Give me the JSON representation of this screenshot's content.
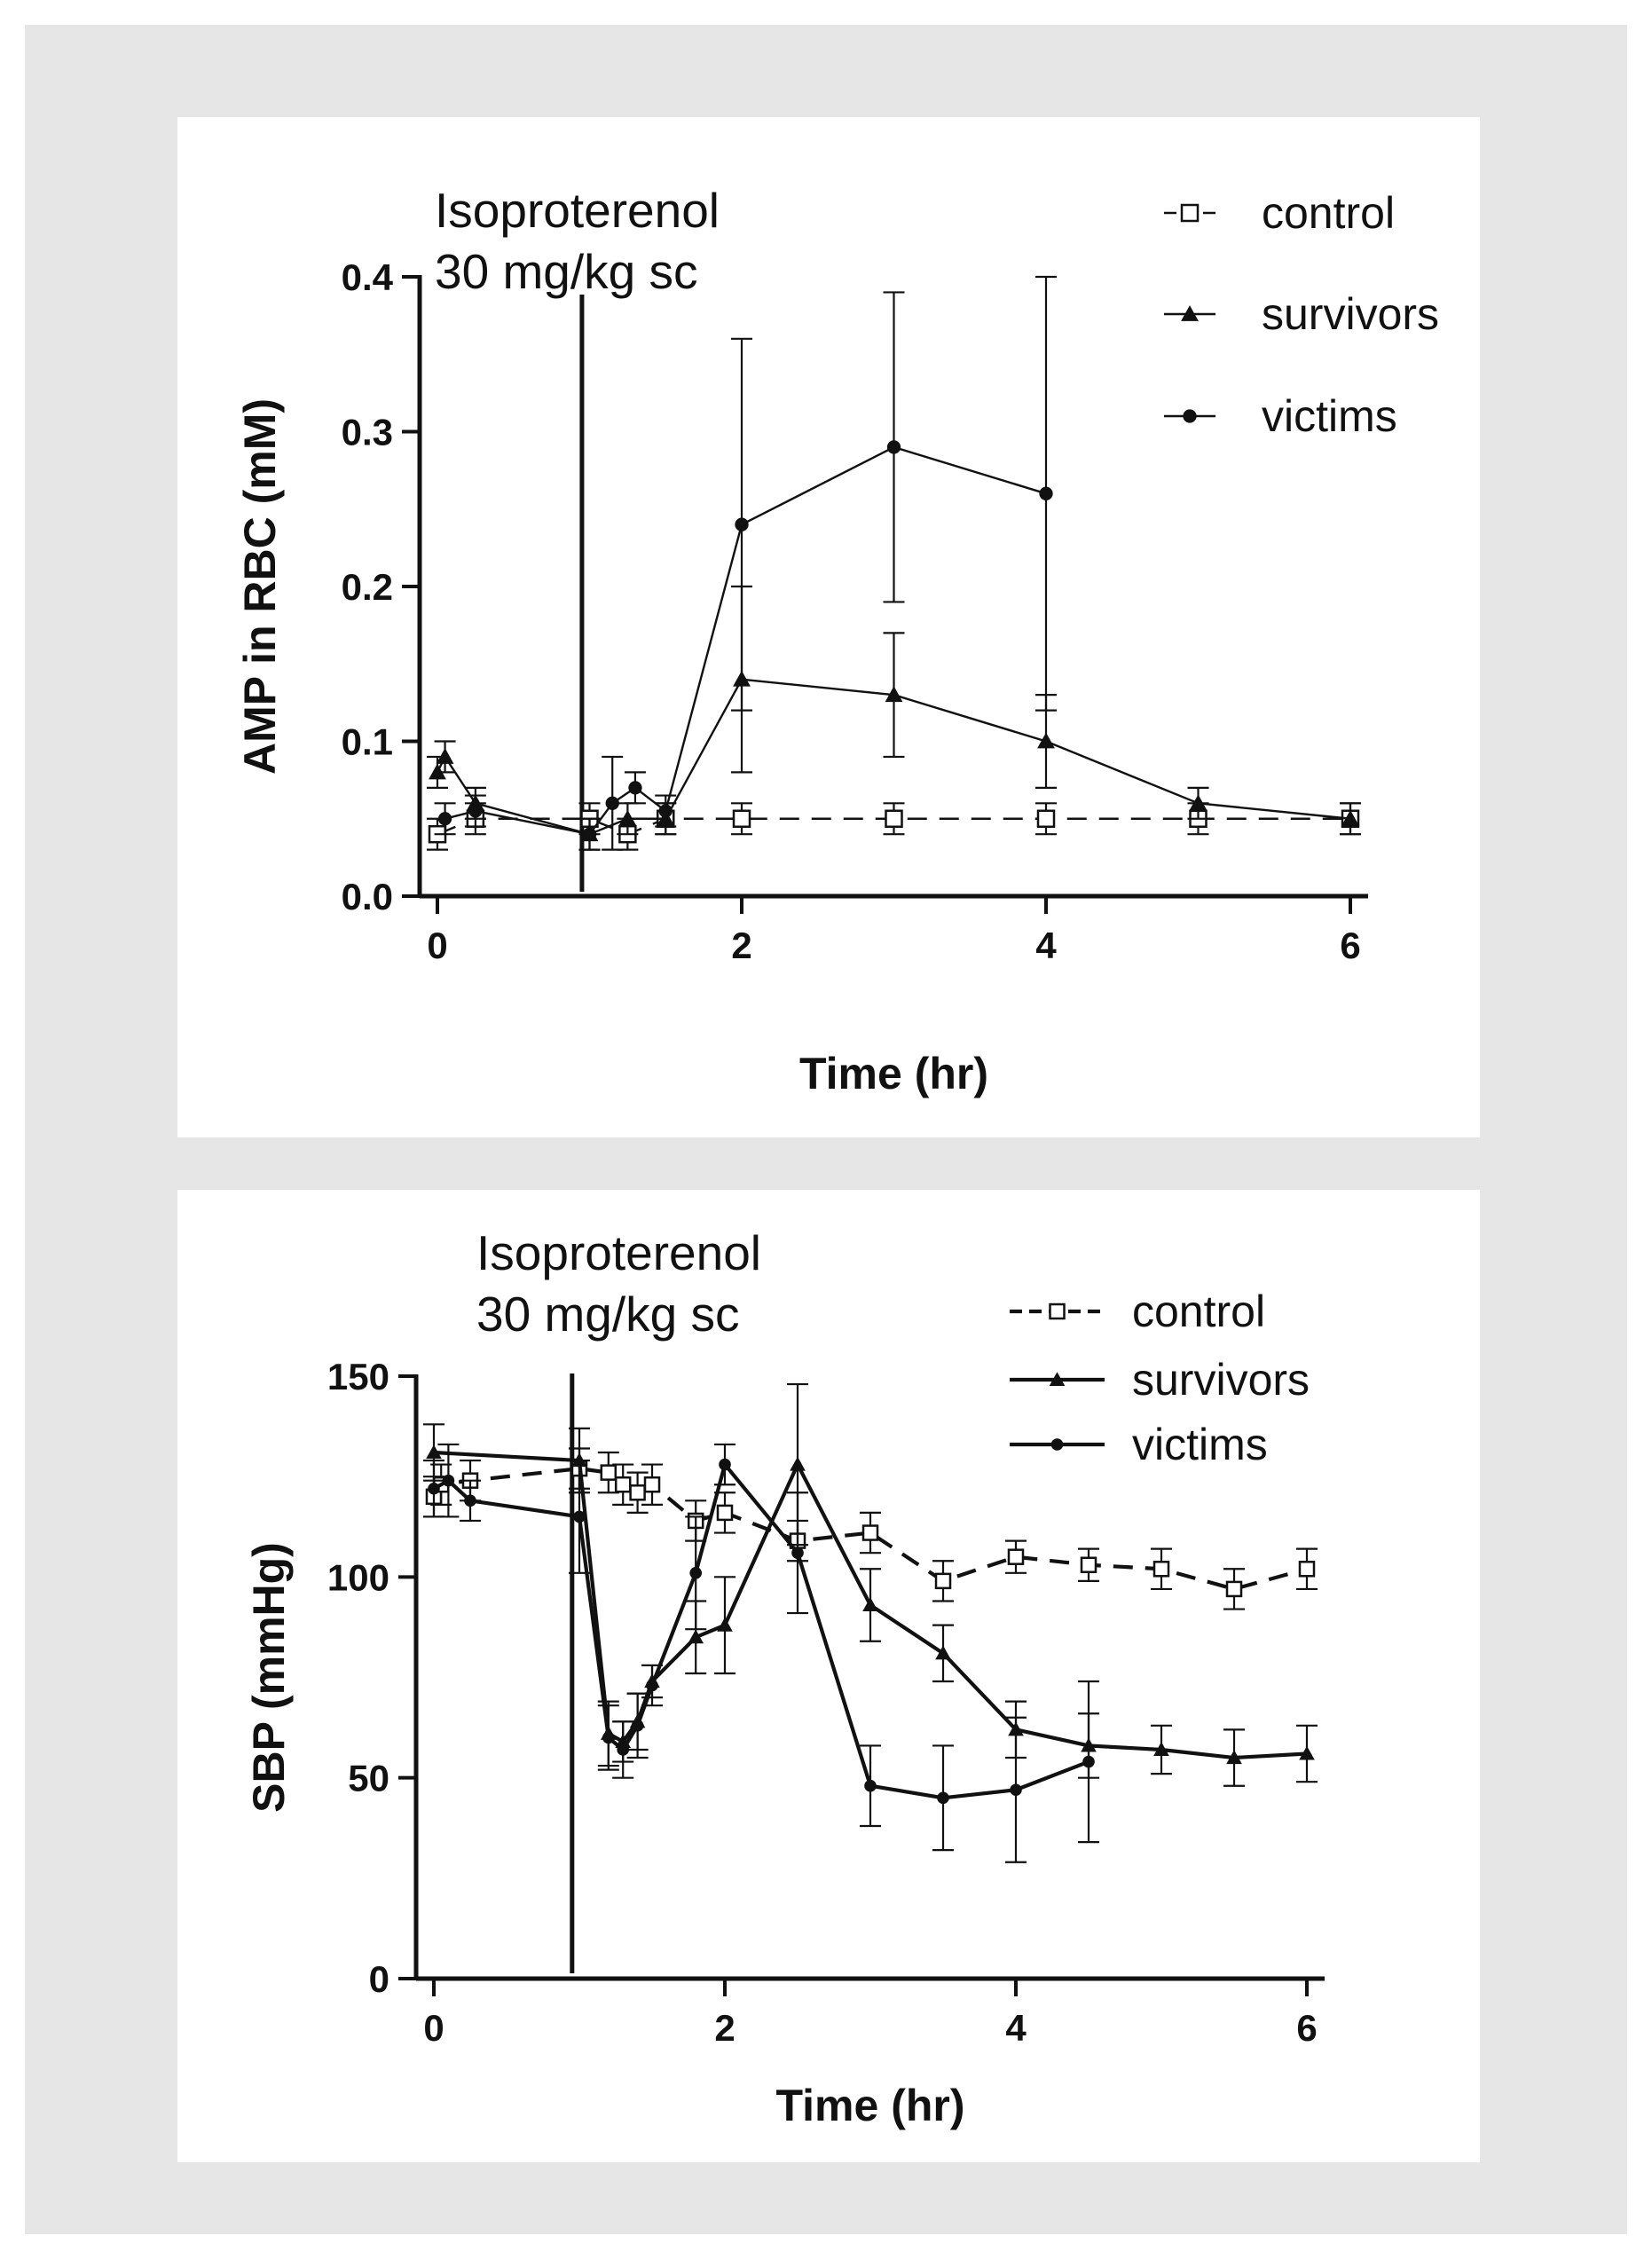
{
  "chart_data": [
    {
      "type": "line",
      "annotation": [
        "Isoproterenol",
        "30 mg/kg sc"
      ],
      "xlabel": "Time (hr)",
      "ylabel": "AMP in RBC (mM)",
      "xlim": [
        0,
        6
      ],
      "ylim": [
        0,
        0.4
      ],
      "xticks": [
        0,
        2,
        4,
        6
      ],
      "yticks": [
        0.0,
        0.1,
        0.2,
        0.3,
        0.4
      ],
      "ytick_labels": [
        "0.0",
        "0.1",
        "0.2",
        "0.3",
        "0.4"
      ],
      "vline_x": 0.95,
      "legend_position": "top-right",
      "grid": false,
      "series": [
        {
          "name": "control",
          "style": "dashed",
          "marker": "open-square",
          "x": [
            0,
            0.25,
            1,
            1.25,
            1.5,
            2,
            3,
            4,
            5,
            6
          ],
          "y": [
            0.04,
            0.05,
            0.05,
            0.04,
            0.05,
            0.05,
            0.05,
            0.05,
            0.05,
            0.05
          ],
          "err": [
            0.01,
            0.01,
            0.01,
            0.01,
            0.01,
            0.01,
            0.01,
            0.01,
            0.01,
            0.01
          ]
        },
        {
          "name": "survivors",
          "style": "solid",
          "marker": "filled-triangle",
          "x": [
            0,
            0.05,
            0.25,
            1,
            1.25,
            1.5,
            2,
            3,
            4,
            5,
            6
          ],
          "y": [
            0.08,
            0.09,
            0.06,
            0.04,
            0.05,
            0.05,
            0.14,
            0.13,
            0.1,
            0.06,
            0.05
          ],
          "err": [
            0.01,
            0.01,
            0.01,
            0.01,
            0.01,
            0.01,
            0.06,
            0.04,
            0.03,
            0.01,
            0.01
          ]
        },
        {
          "name": "victims",
          "style": "solid",
          "marker": "filled-circle",
          "x": [
            0.05,
            0.25,
            1,
            1.15,
            1.3,
            1.5,
            2,
            3,
            4
          ],
          "y": [
            0.05,
            0.055,
            0.04,
            0.06,
            0.07,
            0.055,
            0.24,
            0.29,
            0.26
          ],
          "err": [
            0.01,
            0.01,
            0.01,
            0.03,
            0.01,
            0.01,
            0.12,
            0.1,
            0.14
          ]
        }
      ]
    },
    {
      "type": "line",
      "annotation": [
        "Isoproterenol",
        "30 mg/kg sc"
      ],
      "xlabel": "Time (hr)",
      "ylabel": "SBP (mmHg)",
      "xlim": [
        0,
        6
      ],
      "ylim": [
        0,
        150
      ],
      "xticks": [
        0,
        2,
        4,
        6
      ],
      "yticks": [
        0,
        50,
        100,
        150
      ],
      "ytick_labels": [
        "0",
        "50",
        "100",
        "150"
      ],
      "vline_x": 0.95,
      "legend_position": "top-right",
      "grid": false,
      "series": [
        {
          "name": "control",
          "style": "dashed",
          "marker": "open-square",
          "x": [
            0,
            0.05,
            0.25,
            1,
            1.2,
            1.3,
            1.4,
            1.5,
            1.8,
            2,
            2.5,
            3,
            3.5,
            4,
            4.5,
            5,
            5.5,
            6
          ],
          "y": [
            120,
            123,
            124,
            127,
            126,
            123,
            121,
            123,
            114,
            116,
            109,
            111,
            99,
            105,
            103,
            102,
            97,
            102
          ],
          "err": [
            5,
            5,
            5,
            5,
            5,
            5,
            5,
            5,
            5,
            5,
            5,
            5,
            5,
            4,
            4,
            5,
            5,
            5
          ]
        },
        {
          "name": "survivors",
          "style": "solid",
          "marker": "filled-triangle",
          "x": [
            0,
            1,
            1.2,
            1.3,
            1.4,
            1.5,
            1.8,
            2,
            2.5,
            3,
            3.5,
            4,
            4.5,
            5,
            5.5,
            6
          ],
          "y": [
            131,
            129,
            61,
            59,
            64,
            74,
            85,
            88,
            128,
            93,
            81,
            62,
            58,
            57,
            55,
            56
          ],
          "err": [
            7,
            8,
            8,
            5,
            7,
            4,
            9,
            12,
            20,
            9,
            7,
            7,
            8,
            6,
            7,
            7
          ]
        },
        {
          "name": "victims",
          "style": "solid",
          "marker": "filled-circle",
          "x": [
            0,
            0.1,
            0.25,
            1,
            1.2,
            1.3,
            1.4,
            1.5,
            1.8,
            2,
            2.5,
            3,
            3.5,
            4,
            4.5
          ],
          "y": [
            122,
            124,
            119,
            115,
            60,
            57,
            63,
            73,
            101,
            128,
            106,
            48,
            45,
            47,
            54
          ],
          "err": [
            7,
            9,
            5,
            14,
            8,
            7,
            8,
            5,
            14,
            5,
            15,
            10,
            13,
            18,
            20
          ]
        }
      ]
    }
  ]
}
